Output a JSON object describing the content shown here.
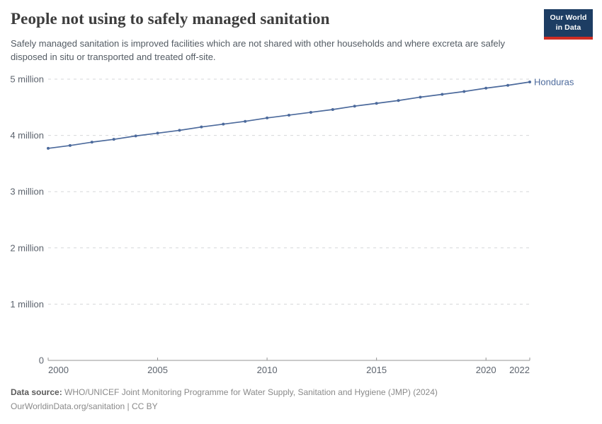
{
  "header": {
    "title": "People not using to safely managed sanitation",
    "subtitle": "Safely managed sanitation is improved facilities which are not shared with other households and where excreta are safely disposed in situ or transported and treated off-site."
  },
  "logo": {
    "line1": "Our World",
    "line2": "in Data",
    "bg_color": "#1d3d63",
    "accent_color": "#cf2d24"
  },
  "chart_data": {
    "type": "line",
    "title": "People not using to safely managed sanitation",
    "xlabel": "",
    "ylabel": "",
    "xlim": [
      2000,
      2022
    ],
    "ylim": [
      0,
      5
    ],
    "values_unit": "million people",
    "grid": true,
    "legend_position": "end-of-line",
    "x": [
      2000,
      2001,
      2002,
      2003,
      2004,
      2005,
      2006,
      2007,
      2008,
      2009,
      2010,
      2011,
      2012,
      2013,
      2014,
      2015,
      2016,
      2017,
      2018,
      2019,
      2020,
      2021,
      2022
    ],
    "series": [
      {
        "name": "Honduras",
        "color": "#4C6A9C",
        "values": [
          3.77,
          3.82,
          3.88,
          3.93,
          3.99,
          4.04,
          4.09,
          4.15,
          4.2,
          4.25,
          4.31,
          4.36,
          4.41,
          4.46,
          4.52,
          4.57,
          4.62,
          4.68,
          4.73,
          4.78,
          4.84,
          4.89,
          4.95
        ]
      }
    ],
    "y_ticks": [
      {
        "value": 5,
        "label": "5 million"
      },
      {
        "value": 4,
        "label": "4 million"
      },
      {
        "value": 3,
        "label": "3 million"
      },
      {
        "value": 2,
        "label": "2 million"
      },
      {
        "value": 1,
        "label": "1 million"
      },
      {
        "value": 0,
        "label": "0"
      }
    ],
    "x_ticks": [
      {
        "value": 2000,
        "label": "2000"
      },
      {
        "value": 2005,
        "label": "2005"
      },
      {
        "value": 2010,
        "label": "2010"
      },
      {
        "value": 2015,
        "label": "2015"
      },
      {
        "value": 2020,
        "label": "2020"
      },
      {
        "value": 2022,
        "label": "2022"
      }
    ]
  },
  "colors": {
    "line": "#4C6A9C",
    "grid": "#d5d7da",
    "axis": "#949494",
    "tick_text": "#5d646e"
  },
  "footer": {
    "datasource_label": "Data source:",
    "datasource_text": " WHO/UNICEF Joint Monitoring Programme for Water Supply, Sanitation and Hygiene (JMP) (2024)",
    "url": "OurWorldinData.org/sanitation",
    "separator": " | ",
    "license": "CC BY"
  }
}
